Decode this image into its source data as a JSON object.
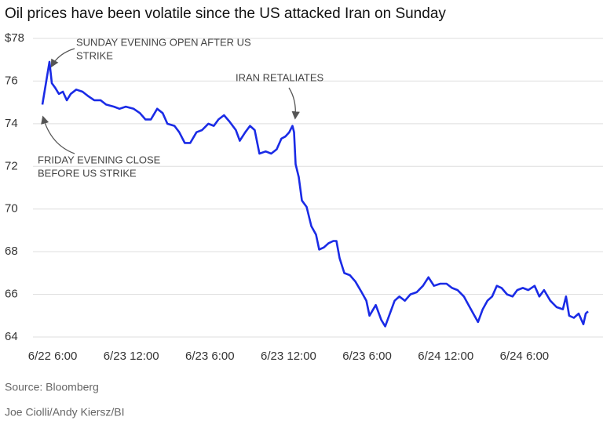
{
  "chart_data": {
    "type": "line",
    "title": "Oil prices have been volatile since the US attacked Iran on Sunday",
    "source": "Source: Bloomberg",
    "credit": "Joe Ciolli/Andy Kiersz/BI",
    "annotations": [
      {
        "lines": [
          "SUNDAY EVENING OPEN AFTER US",
          "STRIKE"
        ]
      },
      {
        "lines": [
          "IRAN RETALIATES"
        ]
      },
      {
        "lines": [
          "FRIDAY EVENING CLOSE",
          "BEFORE US STRIKE"
        ]
      }
    ],
    "x": [
      -0.78,
      -0.24,
      -0.06,
      0.18,
      0.48,
      0.78,
      1.08,
      1.38,
      1.8,
      2.28,
      2.7,
      3.18,
      3.66,
      4.08,
      4.68,
      5.1,
      5.58,
      6.18,
      6.66,
      7.08,
      7.5,
      7.98,
      8.4,
      8.76,
      9.3,
      9.66,
      10.08,
      10.5,
      10.98,
      11.4,
      11.88,
      12.3,
      12.66,
      13.08,
      13.5,
      13.98,
      14.28,
      14.7,
      15.06,
      15.42,
      15.78,
      16.26,
      16.68,
      17.1,
      17.46,
      17.76,
      18.06,
      18.3,
      18.42,
      18.54,
      18.78,
      19.02,
      19.38,
      19.74,
      20.1,
      20.34,
      20.7,
      21.06,
      21.42,
      21.66,
      21.9,
      22.26,
      22.68,
      23.1,
      23.58,
      23.94,
      24.18,
      24.66,
      25.08,
      25.38,
      25.74,
      26.1,
      26.46,
      26.88,
      27.3,
      27.78,
      28.26,
      28.68,
      29.1,
      29.58,
      30.06,
      30.48,
      30.9,
      31.38,
      31.74,
      32.1,
      32.46,
      32.82,
      33.18,
      33.54,
      33.9,
      34.26,
      34.68,
      35.1,
      35.46,
      35.88,
      36.3,
      36.78,
      37.14,
      37.5,
      37.98,
      38.46,
      38.94,
      39.18,
      39.42,
      39.78,
      40.14,
      40.5,
      40.68,
      40.86
    ],
    "series": [
      {
        "name": "Oil price",
        "color": "#1a2be6",
        "values": [
          74.9,
          76.9,
          75.9,
          75.7,
          75.4,
          75.5,
          75.1,
          75.4,
          75.6,
          75.5,
          75.3,
          75.1,
          75.1,
          74.9,
          74.8,
          74.7,
          74.8,
          74.7,
          74.5,
          74.2,
          74.2,
          74.7,
          74.5,
          74.0,
          73.9,
          73.6,
          73.1,
          73.1,
          73.6,
          73.7,
          74.0,
          73.9,
          74.2,
          74.4,
          74.1,
          73.7,
          73.2,
          73.6,
          73.9,
          73.7,
          72.6,
          72.7,
          72.6,
          72.8,
          73.3,
          73.4,
          73.6,
          73.9,
          73.6,
          72.1,
          71.5,
          70.4,
          70.1,
          69.2,
          68.8,
          68.1,
          68.2,
          68.4,
          68.5,
          68.5,
          67.7,
          67.0,
          66.9,
          66.6,
          66.1,
          65.7,
          65.0,
          65.5,
          64.8,
          64.5,
          65.1,
          65.7,
          65.9,
          65.7,
          66.0,
          66.1,
          66.4,
          66.8,
          66.4,
          66.5,
          66.5,
          66.3,
          66.2,
          65.9,
          65.5,
          65.1,
          64.7,
          65.3,
          65.7,
          65.9,
          66.4,
          66.3,
          66.0,
          65.9,
          66.2,
          66.3,
          66.2,
          66.4,
          65.9,
          66.2,
          65.7,
          65.4,
          65.3,
          65.9,
          65.0,
          64.9,
          65.1,
          64.6,
          65.1,
          65.2
        ]
      }
    ],
    "xlim": [
      -1.5,
      42
    ],
    "xticks": [
      {
        "value": 0,
        "label": "6/22 6:00"
      },
      {
        "value": 6,
        "label": "6/23 12:00"
      },
      {
        "value": 12,
        "label": "6/23 6:00"
      },
      {
        "value": 18,
        "label": "6/23 12:00"
      },
      {
        "value": 24,
        "label": "6/23 6:00"
      },
      {
        "value": 30,
        "label": "6/24 12:00"
      },
      {
        "value": 36,
        "label": "6/24 6:00"
      }
    ],
    "ylim": [
      64,
      78
    ],
    "yticks": [
      64,
      66,
      68,
      70,
      72,
      74,
      76,
      {
        "value": 78,
        "label": "$78"
      }
    ],
    "grid": true
  }
}
